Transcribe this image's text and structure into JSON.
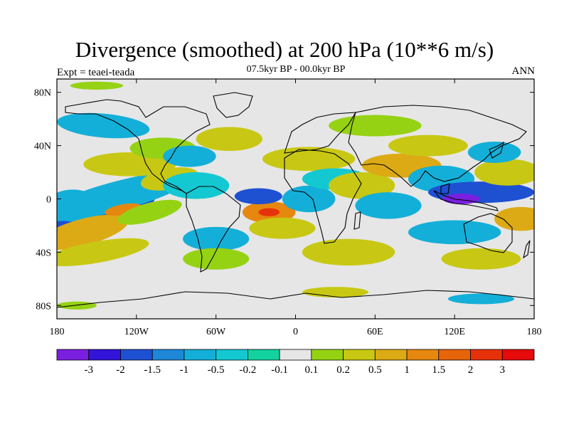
{
  "chart_data": {
    "type": "heatmap",
    "title": "Divergence (smoothed) at 200 hPa (10**6 m/s)",
    "subtitle": "07.5kyr BP - 00.0kyr BP",
    "left_label": "Expt = teaei-teada",
    "right_label": "ANN",
    "x_range": [
      -180,
      180
    ],
    "y_range": [
      -90,
      90
    ],
    "x_ticks": [
      {
        "value": -180,
        "label": "180"
      },
      {
        "value": -120,
        "label": "120W"
      },
      {
        "value": -60,
        "label": "60W"
      },
      {
        "value": 0,
        "label": "0"
      },
      {
        "value": 60,
        "label": "60E"
      },
      {
        "value": 120,
        "label": "120E"
      },
      {
        "value": 180,
        "label": "180"
      }
    ],
    "y_ticks": [
      {
        "value": 80,
        "label": "80N"
      },
      {
        "value": 40,
        "label": "40N"
      },
      {
        "value": 0,
        "label": "0"
      },
      {
        "value": -40,
        "label": "40S"
      },
      {
        "value": -80,
        "label": "80S"
      }
    ],
    "colorbar": {
      "levels": [
        "-3",
        "-2",
        "-1.5",
        "-1",
        "-0.5",
        "-0.2",
        "-0.1",
        "0.1",
        "0.2",
        "0.5",
        "1",
        "1.5",
        "2",
        "3"
      ],
      "colors": [
        "#7a1fe0",
        "#3214d8",
        "#1e50d2",
        "#1e87d8",
        "#14afd8",
        "#14c8d2",
        "#14d2a0",
        "#e6e6e6",
        "#96d214",
        "#c8c814",
        "#dcaa14",
        "#e6870f",
        "#e6640a",
        "#e6320a",
        "#e60a0a"
      ]
    },
    "features": [
      {
        "lon": -155,
        "lat": -9,
        "value": -3,
        "rlon": 24,
        "rlat": 5,
        "rot": -12
      },
      {
        "lon": -150,
        "lat": -8,
        "value": -1.5,
        "rlon": 45,
        "rlat": 11,
        "rot": -12
      },
      {
        "lon": -135,
        "lat": 2,
        "value": -0.5,
        "rlon": 60,
        "rlat": 11,
        "rot": -15
      },
      {
        "lon": -168,
        "lat": -5,
        "value": -0.5,
        "rlon": 20,
        "rlat": 12,
        "rot": 0
      },
      {
        "lon": -160,
        "lat": -25,
        "value": 1,
        "rlon": 35,
        "rlat": 10,
        "rot": -15
      },
      {
        "lon": -130,
        "lat": -8,
        "value": 1.5,
        "rlon": 14,
        "rlat": 4,
        "rot": -10
      },
      {
        "lon": -150,
        "lat": -40,
        "value": 0.5,
        "rlon": 40,
        "rlat": 8,
        "rot": -10
      },
      {
        "lon": -110,
        "lat": -10,
        "value": 0.2,
        "rlon": 25,
        "rlat": 7,
        "rot": -15
      },
      {
        "lon": -125,
        "lat": 26,
        "value": 0.5,
        "rlon": 35,
        "rlat": 9,
        "rot": 0
      },
      {
        "lon": -95,
        "lat": 15,
        "value": 0.5,
        "rlon": 22,
        "rlat": 8,
        "rot": -10
      },
      {
        "lon": -145,
        "lat": 55,
        "value": -0.5,
        "rlon": 35,
        "rlat": 9,
        "rot": 5
      },
      {
        "lon": -100,
        "lat": 38,
        "value": 0.2,
        "rlon": 25,
        "rlat": 8,
        "rot": 0
      },
      {
        "lon": -80,
        "lat": 32,
        "value": -0.5,
        "rlon": 20,
        "rlat": 8,
        "rot": 0
      },
      {
        "lon": -50,
        "lat": 45,
        "value": 0.5,
        "rlon": 25,
        "rlat": 9,
        "rot": 0
      },
      {
        "lon": -75,
        "lat": 10,
        "value": -0.2,
        "rlon": 25,
        "rlat": 10,
        "rot": 0
      },
      {
        "lon": -20,
        "lat": -10,
        "value": 1.5,
        "rlon": 20,
        "rlat": 8,
        "rot": 0
      },
      {
        "lon": -20,
        "lat": -10,
        "value": 3,
        "rlon": 8,
        "rlat": 3,
        "rot": 0
      },
      {
        "lon": -28,
        "lat": 2,
        "value": -1.5,
        "rlon": 18,
        "rlat": 6,
        "rot": 0
      },
      {
        "lon": -10,
        "lat": -22,
        "value": 0.5,
        "rlon": 25,
        "rlat": 8,
        "rot": 0
      },
      {
        "lon": -60,
        "lat": -30,
        "value": -0.5,
        "rlon": 25,
        "rlat": 9,
        "rot": 0
      },
      {
        "lon": -60,
        "lat": -45,
        "value": 0.2,
        "rlon": 25,
        "rlat": 8,
        "rot": 0
      },
      {
        "lon": 10,
        "lat": 30,
        "value": 0.5,
        "rlon": 35,
        "rlat": 9,
        "rot": 0
      },
      {
        "lon": 10,
        "lat": 0,
        "value": -0.5,
        "rlon": 20,
        "rlat": 10,
        "rot": 0
      },
      {
        "lon": 30,
        "lat": 15,
        "value": -0.2,
        "rlon": 25,
        "rlat": 8,
        "rot": 0
      },
      {
        "lon": 40,
        "lat": -40,
        "value": 0.5,
        "rlon": 35,
        "rlat": 10,
        "rot": 0
      },
      {
        "lon": 50,
        "lat": 10,
        "value": 0.5,
        "rlon": 25,
        "rlat": 10,
        "rot": 0
      },
      {
        "lon": 70,
        "lat": -5,
        "value": -0.5,
        "rlon": 25,
        "rlat": 10,
        "rot": 0
      },
      {
        "lon": 80,
        "lat": 25,
        "value": 1,
        "rlon": 30,
        "rlat": 9,
        "rot": 0
      },
      {
        "lon": 100,
        "lat": 40,
        "value": 0.5,
        "rlon": 30,
        "rlat": 8,
        "rot": 0
      },
      {
        "lon": 110,
        "lat": 15,
        "value": -0.5,
        "rlon": 25,
        "rlat": 10,
        "rot": 0
      },
      {
        "lon": 140,
        "lat": 5,
        "value": -1.5,
        "rlon": 40,
        "rlat": 8,
        "rot": 0
      },
      {
        "lon": 125,
        "lat": 0,
        "value": -3,
        "rlon": 14,
        "rlat": 4,
        "rot": 0
      },
      {
        "lon": 160,
        "lat": 20,
        "value": 0.5,
        "rlon": 25,
        "rlat": 10,
        "rot": 0
      },
      {
        "lon": 150,
        "lat": 35,
        "value": -0.5,
        "rlon": 20,
        "rlat": 8,
        "rot": 0
      },
      {
        "lon": 170,
        "lat": -15,
        "value": 1,
        "rlon": 20,
        "rlat": 9,
        "rot": 0
      },
      {
        "lon": 120,
        "lat": -25,
        "value": -0.5,
        "rlon": 35,
        "rlat": 9,
        "rot": 0
      },
      {
        "lon": 140,
        "lat": -45,
        "value": 0.5,
        "rlon": 30,
        "rlat": 8,
        "rot": 0
      },
      {
        "lon": 60,
        "lat": 55,
        "value": 0.2,
        "rlon": 35,
        "rlat": 8,
        "rot": 0
      },
      {
        "lon": 140,
        "lat": -75,
        "value": -0.5,
        "rlon": 25,
        "rlat": 4,
        "rot": 0
      },
      {
        "lon": 30,
        "lat": -70,
        "value": 0.5,
        "rlon": 25,
        "rlat": 4,
        "rot": 0
      },
      {
        "lon": -150,
        "lat": 85,
        "value": 0.2,
        "rlon": 20,
        "rlat": 3,
        "rot": 0
      },
      {
        "lon": -165,
        "lat": -80,
        "value": 0.2,
        "rlon": 15,
        "rlat": 3,
        "rot": 0
      }
    ]
  }
}
